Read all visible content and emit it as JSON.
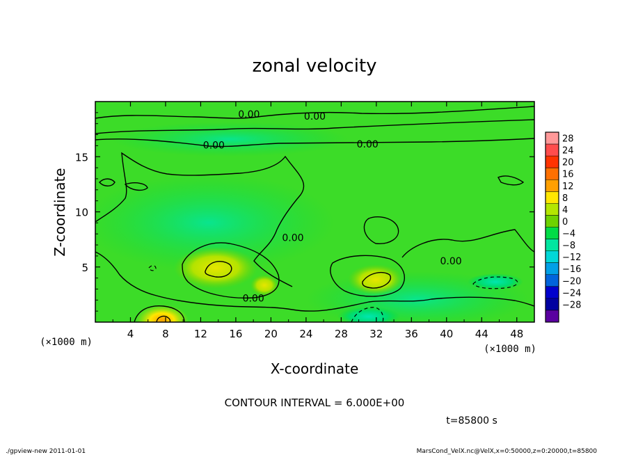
{
  "chart_data": {
    "type": "heatmap",
    "title": "zonal velocity",
    "xlabel": "X-coordinate",
    "ylabel": "Z-coordinate",
    "x_unit_label": "(×1000 m)",
    "y_unit_label": "(×1000 m)",
    "xlim": [
      0,
      50
    ],
    "ylim": [
      0,
      20
    ],
    "x_ticks": [
      4,
      8,
      12,
      16,
      20,
      24,
      28,
      32,
      36,
      40,
      44,
      48
    ],
    "y_ticks": [
      5,
      10,
      15
    ],
    "colorbar": {
      "levels": [
        28,
        24,
        20,
        16,
        12,
        8,
        4,
        0,
        -4,
        -8,
        -12,
        -16,
        -20,
        -24,
        -28
      ],
      "labels": [
        "28",
        "24",
        "20",
        "16",
        "12",
        "8",
        "4",
        "0",
        "−4",
        "−8",
        "−12",
        "−16",
        "−20",
        "−24",
        "−28"
      ],
      "colors": [
        "#ff9999",
        "#ff4d4d",
        "#ff3300",
        "#ff7000",
        "#ffa000",
        "#ffe600",
        "#b4e600",
        "#6ed200",
        "#00dc46",
        "#00e6a0",
        "#00d7d7",
        "#00a0e6",
        "#0064dc",
        "#0000cd",
        "#0000a0",
        "#5a00a0"
      ]
    },
    "contour_interval": 6.0,
    "contour_labels": [
      {
        "x": 17.5,
        "z": 18.8,
        "text": "0.00"
      },
      {
        "x": 25.0,
        "z": 18.6,
        "text": "0.00"
      },
      {
        "x": 13.5,
        "z": 16.0,
        "text": "0.00"
      },
      {
        "x": 31.0,
        "z": 16.1,
        "text": "0.00"
      },
      {
        "x": 22.5,
        "z": 7.6,
        "text": "0.00"
      },
      {
        "x": 40.5,
        "z": 5.5,
        "text": "0.00"
      },
      {
        "x": 18.0,
        "z": 2.1,
        "text": "0.00"
      }
    ],
    "features": {
      "positive_cores": [
        {
          "x": 13.8,
          "z": 5.0,
          "value": 6
        },
        {
          "x": 32.0,
          "z": 3.8,
          "value": 6
        },
        {
          "x": 19.0,
          "z": 3.2,
          "value": 6
        },
        {
          "x": 7.8,
          "z": 0.5,
          "value": 12
        }
      ],
      "negative_cores": [
        {
          "x": 43.5,
          "z": 3.5,
          "value": -6
        },
        {
          "x": 31.0,
          "z": 0.6,
          "value": -6
        }
      ]
    }
  },
  "annotations": {
    "contour_interval_text": "CONTOUR INTERVAL = 6.000E+00",
    "time_text": "t=85800 s",
    "footer_left": "./gpview-new  2011-01-01",
    "footer_right": "MarsCond_VelX.nc@VelX,x=0:50000,z=0:20000,t=85800"
  }
}
